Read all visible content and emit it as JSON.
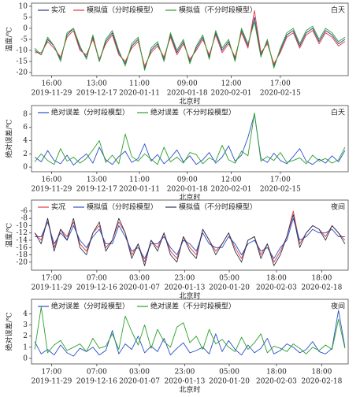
{
  "chart_data": [
    {
      "type": "line",
      "ylabel": "温度/℃",
      "xlabel": "北京时",
      "annotation": "白天",
      "x": [
        0,
        1,
        2,
        3,
        4,
        5,
        6,
        7,
        8,
        9,
        10,
        11,
        12,
        13,
        14,
        15,
        16,
        17,
        18,
        19,
        20,
        21,
        22,
        23,
        24,
        25,
        26,
        27,
        28,
        29,
        30,
        31,
        32,
        33,
        34,
        35,
        36,
        37,
        38,
        39,
        40,
        41,
        42,
        43,
        44,
        45,
        46,
        47,
        48
      ],
      "xlim": [
        -0.5,
        48.5
      ],
      "ylim": [
        -21.4,
        11.4
      ],
      "yticks": [
        10,
        5,
        0,
        -5,
        -10,
        -15,
        -20
      ],
      "xticks": [
        {
          "value": 2.6,
          "time": "16:00",
          "date": "2019-11-29"
        },
        {
          "value": 9.6,
          "time": "13:00",
          "date": "2019-12-17"
        },
        {
          "value": 16.2,
          "time": "11:00",
          "date": "2020-01-11"
        },
        {
          "value": 23.6,
          "time": "09:00",
          "date": "2020-01-18"
        },
        {
          "value": 30.4,
          "time": "12:00",
          "date": "2020-02-01"
        },
        {
          "value": 38,
          "time": "17:00",
          "date": "2020-02-15"
        }
      ],
      "series": [
        {
          "name": "实况",
          "color": "#2b3a8f",
          "values": [
            -10,
            -12,
            -5,
            -8,
            -14,
            -3,
            0,
            -9,
            -13,
            -4,
            -15,
            -6,
            -2,
            -11,
            -16,
            -8,
            -5,
            -18,
            -10,
            -7,
            -14,
            -3,
            -11,
            -6,
            -15,
            -9,
            -4,
            -13,
            -2,
            -10,
            -6,
            -14,
            -1,
            -8,
            5,
            -12,
            -6,
            -17,
            -10,
            -3,
            -1,
            -8,
            -2,
            0,
            -6,
            -1,
            -3,
            -7,
            -5
          ]
        },
        {
          "name": "模拟值（分时段模型）",
          "color": "#e0393e",
          "values": [
            -11,
            -11,
            -6,
            -9,
            -13,
            -4,
            -1,
            -10,
            -12,
            -5,
            -14,
            -7,
            -3,
            -12,
            -15,
            -9,
            -6,
            -17,
            -11,
            -8,
            -13,
            -4,
            -12,
            -7,
            -14,
            -10,
            -5,
            -12,
            -3,
            -11,
            -7,
            -13,
            -2,
            -9,
            8,
            -11,
            -7,
            -16,
            -11,
            -4,
            -2,
            -9,
            -3,
            -1,
            -7,
            -2,
            -4,
            -8,
            -6
          ]
        },
        {
          "name": "模拟值（不分时段模型）",
          "color": "#2ca02c",
          "values": [
            -9,
            -12,
            -4,
            -8,
            -15,
            -2,
            0,
            -8,
            -14,
            -3,
            -15,
            -5,
            -1,
            -10,
            -17,
            -7,
            -4,
            -19,
            -9,
            -6,
            -15,
            -2,
            -10,
            -5,
            -16,
            -8,
            -3,
            -14,
            -1,
            -9,
            -5,
            -15,
            0,
            -7,
            3,
            -13,
            -5,
            -18,
            -9,
            -2,
            0,
            -7,
            -1,
            1,
            -5,
            0,
            -2,
            -6,
            -4
          ]
        }
      ]
    },
    {
      "type": "line",
      "ylabel": "绝对误差/℃",
      "xlabel": "北京时",
      "annotation": "白天",
      "x": [
        0,
        1,
        2,
        3,
        4,
        5,
        6,
        7,
        8,
        9,
        10,
        11,
        12,
        13,
        14,
        15,
        16,
        17,
        18,
        19,
        20,
        21,
        22,
        23,
        24,
        25,
        26,
        27,
        28,
        29,
        30,
        31,
        32,
        33,
        34,
        35,
        36,
        37,
        38,
        39,
        40,
        41,
        42,
        43,
        44,
        45,
        46,
        47,
        48
      ],
      "xlim": [
        -0.5,
        48.5
      ],
      "ylim": [
        -0.7,
        9.3
      ],
      "yticks": [
        0,
        2,
        4,
        6,
        8
      ],
      "xticks": [
        {
          "value": 2.6,
          "time": "16:00",
          "date": "2019-11-29"
        },
        {
          "value": 9.6,
          "time": "13:00",
          "date": "2019-12-17"
        },
        {
          "value": 16.2,
          "time": "11:00",
          "date": "2020-01-11"
        },
        {
          "value": 23.6,
          "time": "09:00",
          "date": "2020-01-18"
        },
        {
          "value": 30.4,
          "time": "12:00",
          "date": "2020-02-01"
        },
        {
          "value": 38,
          "time": "17:00",
          "date": "2020-02-15"
        }
      ],
      "series": [
        {
          "name": "绝对误差（分时段模型）",
          "color": "#2b50c8",
          "values": [
            1.5,
            0.8,
            2.5,
            1.0,
            0.5,
            1.8,
            0.3,
            1.2,
            2.0,
            0.6,
            3.0,
            1.1,
            0.4,
            1.6,
            2.4,
            0.7,
            1.3,
            3.5,
            0.9,
            1.9,
            0.5,
            1.4,
            2.6,
            0.8,
            1.7,
            0.4,
            1.1,
            2.2,
            0.6,
            1.5,
            3.2,
            0.9,
            1.8,
            4.5,
            8.0,
            1.3,
            0.7,
            2.1,
            1.0,
            0.5,
            1.6,
            2.8,
            0.9,
            0.4,
            1.2,
            0.6,
            1.7,
            0.8,
            2.5
          ]
        },
        {
          "name": "绝对误差（不分时段模型）",
          "color": "#2ca02c",
          "values": [
            0.8,
            2.0,
            1.0,
            0.4,
            2.8,
            0.9,
            1.5,
            0.6,
            1.3,
            2.6,
            4.0,
            0.7,
            1.8,
            0.5,
            5.0,
            1.6,
            0.9,
            2.0,
            1.2,
            0.4,
            3.0,
            0.8,
            1.5,
            0.6,
            2.2,
            1.9,
            0.5,
            1.4,
            0.9,
            3.3,
            1.1,
            0.6,
            2.4,
            1.7,
            8.2,
            0.9,
            1.6,
            1.0,
            2.2,
            0.7,
            1.0,
            1.4,
            0.5,
            1.8,
            0.9,
            1.3,
            0.6,
            1.1,
            3.0
          ]
        }
      ]
    },
    {
      "type": "line",
      "ylabel": "温度/℃",
      "xlabel": "北京时",
      "annotation": "夜间",
      "x": [
        0,
        1,
        2,
        3,
        4,
        5,
        6,
        7,
        8,
        9,
        10,
        11,
        12,
        13,
        14,
        15,
        16,
        17,
        18,
        19,
        20,
        21,
        22,
        23,
        24,
        25,
        26,
        27,
        28,
        29,
        30,
        31,
        32,
        33,
        34,
        35,
        36,
        37,
        38,
        39,
        40,
        41,
        42,
        43,
        44,
        45,
        46,
        47,
        48
      ],
      "xlim": [
        -0.5,
        48.5
      ],
      "ylim": [
        -22.2,
        -3
      ],
      "yticks": [
        -6,
        -8,
        -10,
        -12,
        -14,
        -16,
        -18,
        -20
      ],
      "xticks": [
        {
          "value": 2.6,
          "time": "17:00",
          "date": "2019-11-29"
        },
        {
          "value": 9.6,
          "time": "07:00",
          "date": "2019-12-16"
        },
        {
          "value": 16.2,
          "time": "03:00",
          "date": "2020-01-07"
        },
        {
          "value": 23.2,
          "time": "23:00",
          "date": "2020-01-13"
        },
        {
          "value": 30.1,
          "time": "05:00",
          "date": "2020-01-20"
        },
        {
          "value": 37.4,
          "time": "18:00",
          "date": "2020-02-03"
        },
        {
          "value": 44.4,
          "time": "18:00",
          "date": "2020-02-18"
        }
      ],
      "series": [
        {
          "name": "实况",
          "color": "#e0393e",
          "values": [
            -12,
            -14,
            -8,
            -16,
            -11,
            -13,
            -9,
            -15,
            -17,
            -12,
            -10,
            -16,
            -14,
            -9,
            -12,
            -18,
            -15,
            -20,
            -14,
            -16,
            -12,
            -17,
            -19,
            -13,
            -16,
            -18,
            -11,
            -14,
            -17,
            -15,
            -12,
            -16,
            -19,
            -14,
            -13,
            -18,
            -15,
            -20,
            -17,
            -13,
            -6,
            -15,
            -12,
            -10,
            -11,
            -13,
            -10,
            -12,
            -14
          ]
        },
        {
          "name": "模拟值（分时段模型）",
          "color": "#2b50c8",
          "values": [
            -13,
            -13,
            -9,
            -15,
            -12,
            -14,
            -10,
            -14,
            -16,
            -13,
            -11,
            -15,
            -15,
            -10,
            -13,
            -17,
            -16,
            -19,
            -15,
            -15,
            -13,
            -16,
            -18,
            -14,
            -15,
            -17,
            -12,
            -15,
            -16,
            -16,
            -13,
            -15,
            -18,
            -15,
            -14,
            -17,
            -16,
            -19,
            -16,
            -14,
            -8,
            -14,
            -13,
            -11,
            -12,
            -12,
            -11,
            -13,
            -13
          ]
        },
        {
          "name": "模拟值（不分时段模型）",
          "color": "#2a3550",
          "values": [
            -12,
            -15,
            -8,
            -17,
            -11,
            -14,
            -8,
            -16,
            -18,
            -12,
            -9,
            -17,
            -14,
            -8,
            -12,
            -19,
            -15,
            -21,
            -14,
            -17,
            -12,
            -18,
            -20,
            -13,
            -17,
            -19,
            -11,
            -14,
            -18,
            -15,
            -12,
            -17,
            -20,
            -14,
            -13,
            -19,
            -15,
            -21,
            -18,
            -13,
            -7,
            -16,
            -12,
            -10,
            -11,
            -14,
            -10,
            -12,
            -15
          ]
        }
      ]
    },
    {
      "type": "line",
      "ylabel": "绝对误差/℃",
      "xlabel": "北京时",
      "annotation": "夜间",
      "x": [
        0,
        1,
        2,
        3,
        4,
        5,
        6,
        7,
        8,
        9,
        10,
        11,
        12,
        13,
        14,
        15,
        16,
        17,
        18,
        19,
        20,
        21,
        22,
        23,
        24,
        25,
        26,
        27,
        28,
        29,
        30,
        31,
        32,
        33,
        34,
        35,
        36,
        37,
        38,
        39,
        40,
        41,
        42,
        43,
        44,
        45,
        46,
        47,
        48
      ],
      "xlim": [
        -0.5,
        48.5
      ],
      "ylim": [
        -0.5,
        5.3
      ],
      "yticks": [
        0,
        1,
        2,
        3,
        4
      ],
      "xticks": [
        {
          "value": 2.6,
          "time": "17:00",
          "date": "2019-11-29"
        },
        {
          "value": 9.6,
          "time": "07:00",
          "date": "2019-12-16"
        },
        {
          "value": 16.2,
          "time": "03:00",
          "date": "2020-01-07"
        },
        {
          "value": 23.2,
          "time": "23:00",
          "date": "2020-01-13"
        },
        {
          "value": 30.1,
          "time": "05:00",
          "date": "2020-01-20"
        },
        {
          "value": 37.4,
          "time": "18:00",
          "date": "2020-02-03"
        },
        {
          "value": 44.4,
          "time": "18:00",
          "date": "2020-02-18"
        }
      ],
      "series": [
        {
          "name": "绝对误差（分时段模型）",
          "color": "#2b50c8",
          "values": [
            1.5,
            0.4,
            0.8,
            0.3,
            1.2,
            0.5,
            0.2,
            0.9,
            0.6,
            1.0,
            0.3,
            0.7,
            2.5,
            0.4,
            1.3,
            0.8,
            2.0,
            0.5,
            1.1,
            0.6,
            1.8,
            0.3,
            0.9,
            1.4,
            0.5,
            0.7,
            1.0,
            0.4,
            2.2,
            0.6,
            1.6,
            0.8,
            0.3,
            1.2,
            0.5,
            0.9,
            1.8,
            0.4,
            0.7,
            1.3,
            1.0,
            0.5,
            0.8,
            1.5,
            0.6,
            0.4,
            0.9,
            4.3,
            1.0
          ]
        },
        {
          "name": "绝对误差（不分时段模型）",
          "color": "#2ca02c",
          "values": [
            0.8,
            4.6,
            0.5,
            1.2,
            1.6,
            0.7,
            1.0,
            1.3,
            0.6,
            1.8,
            0.9,
            1.1,
            2.2,
            0.8,
            3.8,
            2.4,
            1.2,
            3.0,
            0.9,
            2.6,
            1.5,
            1.0,
            2.8,
            3.2,
            1.4,
            2.0,
            0.8,
            2.6,
            1.3,
            1.7,
            1.0,
            0.6,
            1.9,
            0.8,
            1.4,
            2.2,
            0.5,
            1.1,
            0.9,
            0.6,
            1.3,
            0.9,
            0.4,
            1.0,
            0.7,
            1.2,
            0.8,
            3.5,
            0.9
          ]
        }
      ]
    }
  ]
}
